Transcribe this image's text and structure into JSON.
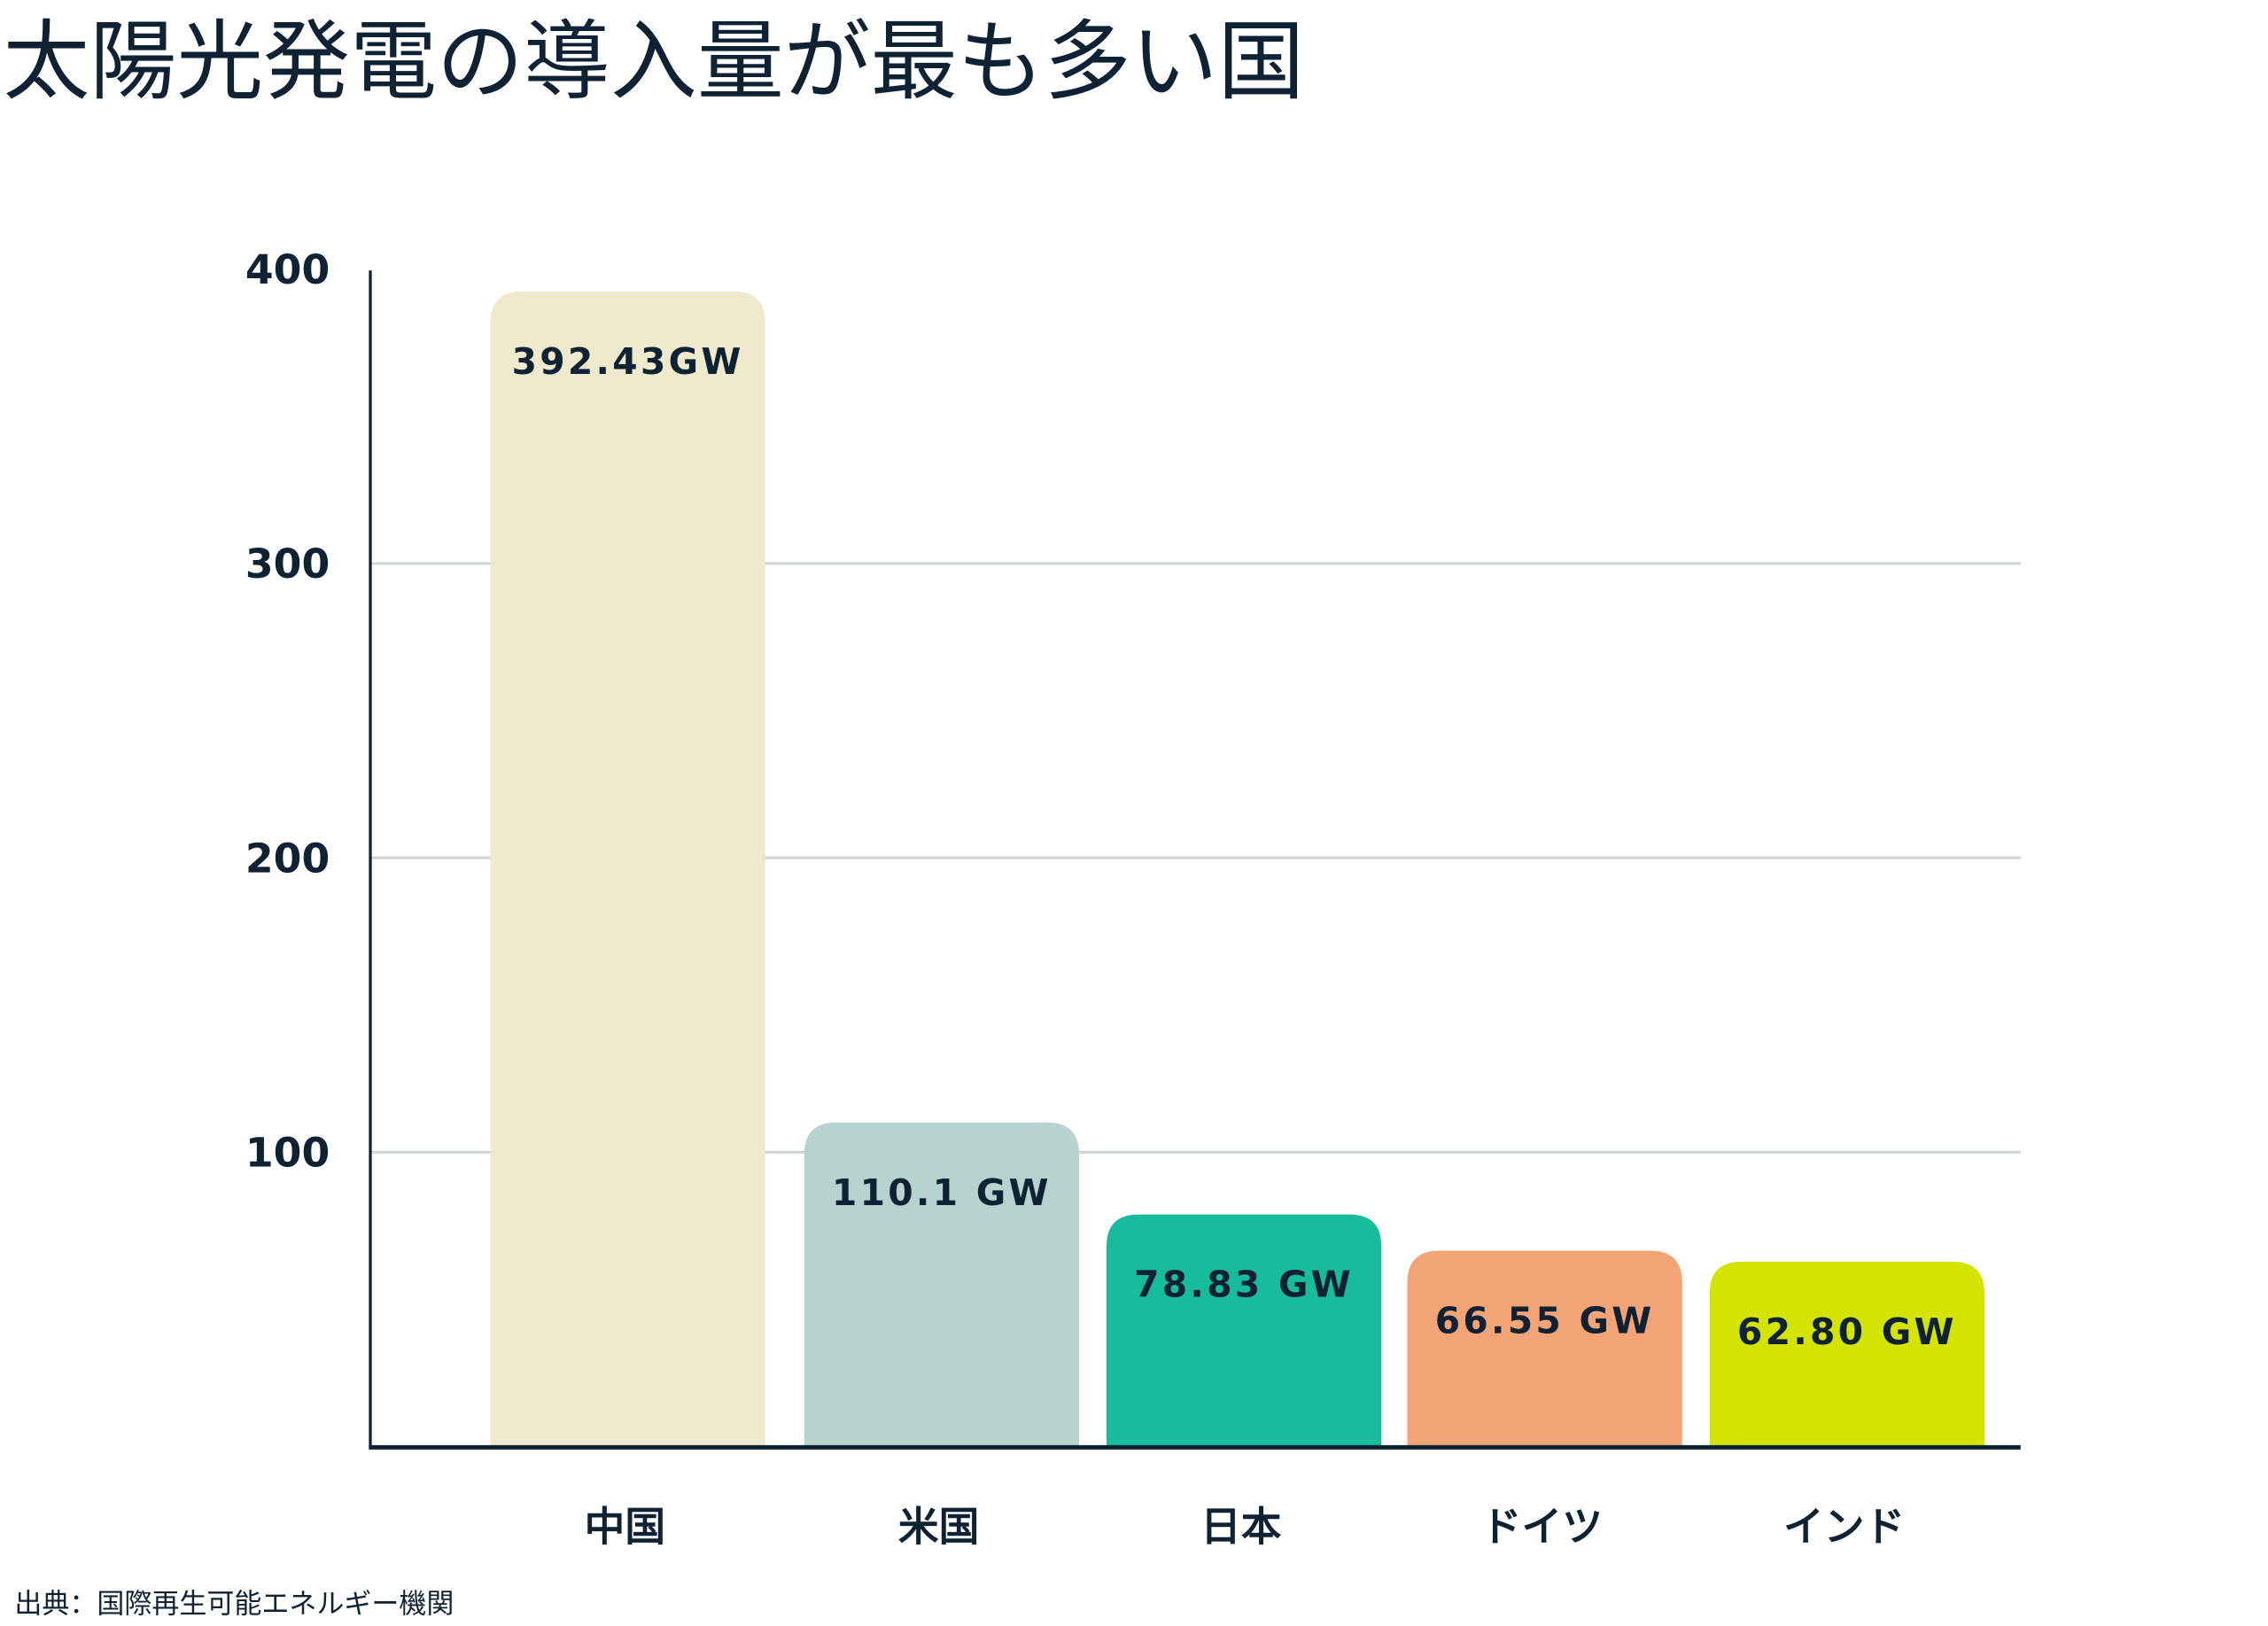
{
  "chart_data": {
    "type": "bar",
    "title": "太陽光発電の導入量が最も多い国",
    "categories": [
      "中国",
      "米国",
      "日本",
      "ドイツ",
      "インド"
    ],
    "values": [
      392.43,
      110.1,
      78.83,
      66.55,
      62.8
    ],
    "data_labels": [
      "392.43GW",
      "110.1 GW",
      "78.83 GW",
      "66.55 GW",
      "62.80 GW"
    ],
    "colors": [
      "#EFEACE",
      "#B8D2D0",
      "#16BC9B",
      "#F3A477",
      "#D4E300"
    ],
    "yticks": [
      "100",
      "200",
      "300",
      "400"
    ],
    "ytick_values": [
      100,
      200,
      300,
      400
    ],
    "ylim": [
      0,
      400
    ],
    "grid": true,
    "xlabel": "",
    "ylabel": "",
    "source": "出典：国際再生可能エネルギー機関"
  }
}
